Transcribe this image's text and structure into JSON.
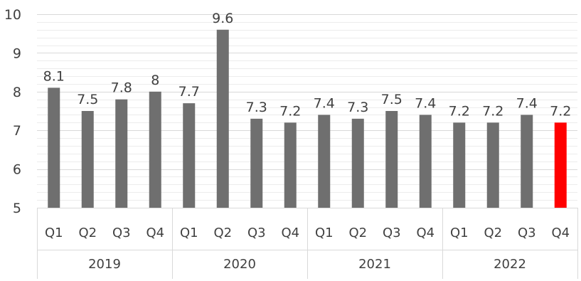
{
  "chart_data": {
    "type": "bar",
    "groups": [
      "2019",
      "2020",
      "2021",
      "2022"
    ],
    "categories": [
      "Q1",
      "Q2",
      "Q3",
      "Q4",
      "Q1",
      "Q2",
      "Q3",
      "Q4",
      "Q1",
      "Q2",
      "Q3",
      "Q4",
      "Q1",
      "Q2",
      "Q3",
      "Q4"
    ],
    "values": [
      8.1,
      7.5,
      7.8,
      8,
      7.7,
      9.6,
      7.3,
      7.2,
      7.4,
      7.3,
      7.5,
      7.4,
      7.2,
      7.2,
      7.4,
      7.2
    ],
    "data_labels": [
      "8.1",
      "7.5",
      "7.8",
      "8",
      "7.7",
      "9.6",
      "7.3",
      "7.2",
      "7.4",
      "7.3",
      "7.5",
      "7.4",
      "7.2",
      "7.2",
      "7.4",
      "7.2"
    ],
    "y_ticks": [
      "5",
      "6",
      "7",
      "8",
      "9",
      "10"
    ],
    "ylim": [
      5,
      10
    ],
    "minor_gridlines": true,
    "bar_color": "#6f6f6f",
    "highlight_color": "#ff0000",
    "highlight_index": 15
  }
}
